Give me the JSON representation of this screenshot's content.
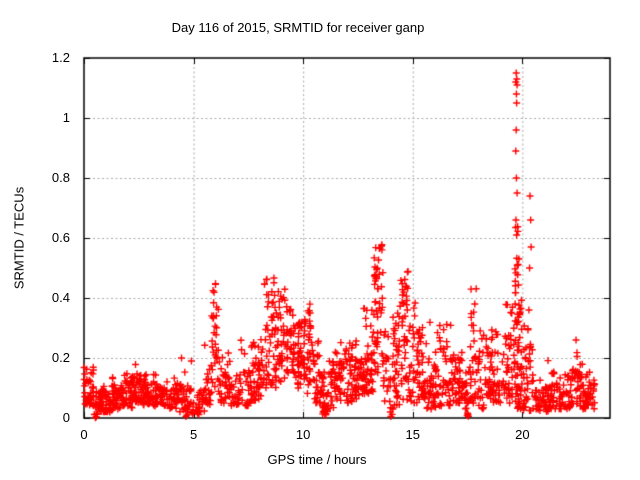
{
  "page": {
    "background": "#ffffff"
  },
  "chart_data": {
    "type": "scatter",
    "title": "Day 116 of 2015, SRMTID for receiver ganp",
    "xlabel": "GPS time / hours",
    "ylabel": "SRMTID / TECUs",
    "xlim": [
      0,
      24
    ],
    "ylim": [
      0,
      1.2
    ],
    "xticks": {
      "values": [
        0,
        5,
        10,
        15,
        20
      ],
      "labels": [
        "0",
        "5",
        "10",
        "15",
        "20"
      ]
    },
    "yticks": {
      "values": [
        0,
        0.2,
        0.4,
        0.6,
        0.8,
        1,
        1.2
      ],
      "labels": [
        "0",
        "0.2",
        "0.4",
        "0.6",
        "0.8",
        "1",
        "1.2"
      ]
    },
    "grid": true,
    "grid_color": "#aaaaaa",
    "border_color": "#000000",
    "marker": "plus",
    "marker_color": "#ff0000",
    "seed": 116,
    "clusters_format": [
      "hour_start",
      "hour_end",
      "count",
      "value_low",
      "value_high",
      "value_max"
    ],
    "clusters": [
      [
        0.0,
        0.45,
        45,
        0.04,
        0.15,
        0.18
      ],
      [
        0.45,
        0.65,
        10,
        0.01,
        0.07,
        0.1
      ],
      [
        0.65,
        1.3,
        60,
        0.02,
        0.09,
        0.12
      ],
      [
        1.3,
        2.2,
        75,
        0.03,
        0.11,
        0.15
      ],
      [
        2.2,
        2.7,
        40,
        0.05,
        0.14,
        0.18
      ],
      [
        2.7,
        3.5,
        60,
        0.04,
        0.12,
        0.15
      ],
      [
        3.5,
        4.3,
        55,
        0.03,
        0.1,
        0.14
      ],
      [
        4.3,
        4.9,
        40,
        0.02,
        0.11,
        0.16
      ],
      [
        4.9,
        5.5,
        30,
        0.01,
        0.08,
        0.12
      ],
      [
        5.5,
        5.78,
        20,
        0.04,
        0.15,
        0.28
      ],
      [
        5.78,
        6.15,
        35,
        0.08,
        0.38,
        0.46
      ],
      [
        6.15,
        6.6,
        28,
        0.05,
        0.16,
        0.22
      ],
      [
        6.6,
        7.5,
        52,
        0.04,
        0.16,
        0.26
      ],
      [
        7.5,
        8.2,
        55,
        0.05,
        0.2,
        0.3
      ],
      [
        8.2,
        8.75,
        50,
        0.1,
        0.42,
        0.47
      ],
      [
        8.75,
        9.25,
        42,
        0.12,
        0.38,
        0.43
      ],
      [
        9.25,
        9.65,
        35,
        0.15,
        0.33,
        0.38
      ],
      [
        9.65,
        10.05,
        40,
        0.1,
        0.28,
        0.32
      ],
      [
        10.05,
        10.4,
        35,
        0.08,
        0.35,
        0.39
      ],
      [
        10.4,
        10.75,
        30,
        0.05,
        0.22,
        0.26
      ],
      [
        10.75,
        11.15,
        35,
        0.01,
        0.13,
        0.16
      ],
      [
        11.15,
        11.65,
        40,
        0.03,
        0.18,
        0.22
      ],
      [
        11.65,
        12.3,
        50,
        0.05,
        0.22,
        0.27
      ],
      [
        12.3,
        12.75,
        40,
        0.06,
        0.2,
        0.26
      ],
      [
        12.75,
        13.2,
        45,
        0.08,
        0.3,
        0.38
      ],
      [
        13.2,
        13.65,
        55,
        0.15,
        0.55,
        0.58
      ],
      [
        13.65,
        13.9,
        15,
        0.04,
        0.26,
        0.3
      ],
      [
        13.9,
        14.1,
        10,
        0.01,
        0.14,
        0.2
      ],
      [
        14.1,
        14.4,
        35,
        0.02,
        0.28,
        0.35
      ],
      [
        14.4,
        14.85,
        45,
        0.06,
        0.42,
        0.49
      ],
      [
        14.85,
        15.45,
        50,
        0.05,
        0.32,
        0.4
      ],
      [
        15.45,
        16.1,
        50,
        0.03,
        0.2,
        0.32
      ],
      [
        16.1,
        16.75,
        45,
        0.04,
        0.24,
        0.33
      ],
      [
        16.75,
        17.35,
        45,
        0.05,
        0.2,
        0.27
      ],
      [
        17.35,
        17.6,
        18,
        0.01,
        0.12,
        0.2
      ],
      [
        17.6,
        17.9,
        30,
        0.05,
        0.36,
        0.44
      ],
      [
        17.9,
        18.5,
        40,
        0.03,
        0.22,
        0.3
      ],
      [
        18.5,
        19.25,
        50,
        0.05,
        0.22,
        0.3
      ],
      [
        19.25,
        19.55,
        30,
        0.05,
        0.3,
        0.38
      ],
      [
        19.55,
        19.98,
        50,
        0.03,
        0.3,
        0.42
      ],
      [
        19.65,
        19.92,
        25,
        0.3,
        0.58,
        0.64
      ],
      [
        20.0,
        20.55,
        40,
        0.02,
        0.25,
        0.32
      ],
      [
        20.55,
        21.2,
        45,
        0.02,
        0.11,
        0.2
      ],
      [
        21.2,
        22.2,
        65,
        0.03,
        0.11,
        0.16
      ],
      [
        22.2,
        22.75,
        40,
        0.04,
        0.18,
        0.28
      ],
      [
        22.75,
        23.3,
        45,
        0.03,
        0.12,
        0.16
      ]
    ],
    "outlier_points": [
      [
        0.52,
        0.001
      ],
      [
        0.56,
        0.004
      ],
      [
        4.45,
        0.2
      ],
      [
        4.9,
        0.19
      ],
      [
        4.65,
        0.005
      ],
      [
        4.7,
        0.01
      ],
      [
        14.0,
        0.005
      ],
      [
        14.06,
        0.012
      ],
      [
        17.48,
        0.008
      ],
      [
        17.52,
        0.012
      ],
      [
        17.5,
        0.016
      ],
      [
        17.54,
        0.006
      ],
      [
        19.72,
        1.15
      ],
      [
        19.75,
        1.13
      ],
      [
        19.7,
        1.12
      ],
      [
        19.76,
        1.11
      ],
      [
        19.73,
        1.08
      ],
      [
        19.74,
        1.05
      ],
      [
        19.72,
        0.96
      ],
      [
        19.7,
        0.89
      ],
      [
        19.73,
        0.8
      ],
      [
        19.76,
        0.75
      ],
      [
        19.71,
        0.66
      ],
      [
        19.74,
        0.61
      ],
      [
        20.35,
        0.74
      ],
      [
        20.38,
        0.66
      ],
      [
        20.4,
        0.57
      ],
      [
        20.33,
        0.5
      ],
      [
        20.3,
        0.36
      ],
      [
        22.45,
        0.26
      ],
      [
        22.5,
        0.205
      ]
    ]
  }
}
